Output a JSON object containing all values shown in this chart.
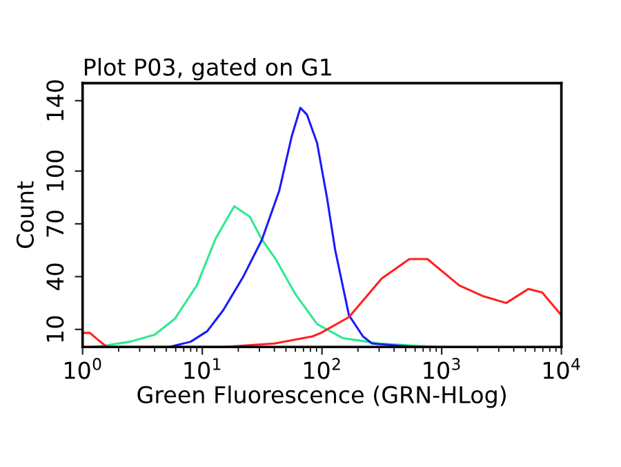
{
  "chart_data": {
    "type": "line",
    "title": "Plot P03, gated on G1",
    "xlabel": "Green Fluorescence (GRN-HLog)",
    "ylabel": "Count",
    "log": "x",
    "xlim": [
      1,
      10000
    ],
    "xticks": [
      {
        "value": 1,
        "label": "10$^{0}$"
      },
      {
        "value": 10,
        "label": "10$^{1}$"
      },
      {
        "value": 100,
        "label": "10$^{2}$"
      },
      {
        "value": 1000,
        "label": "10$^{3}$"
      },
      {
        "value": 10000,
        "label": "10$^{4}$"
      }
    ],
    "ylim": [
      0,
      150
    ],
    "yticks": [
      10,
      40,
      70,
      100,
      140
    ],
    "grid": false,
    "legend": false,
    "series": [
      {
        "color": "#30e890",
        "x": [
          1.2,
          1.6,
          2.5,
          4,
          5.9,
          9,
          13,
          18.5,
          25,
          31.5,
          41,
          60,
          91,
          150,
          300,
          915
        ],
        "values": [
          0,
          1,
          3,
          7,
          16,
          35,
          62,
          80,
          74,
          61,
          50,
          30,
          13,
          5,
          2,
          0
        ]
      },
      {
        "color": "#1a1aff",
        "x": [
          5.3,
          8,
          11,
          15,
          22,
          31.5,
          44,
          56,
          66,
          75,
          91,
          110,
          129,
          168,
          220,
          262,
          585
        ],
        "values": [
          0,
          3,
          9,
          21,
          40,
          61,
          89,
          120,
          136,
          132,
          116,
          85,
          55,
          18,
          6,
          2,
          0
        ]
      },
      {
        "color": "#ff2020",
        "x": [
          1,
          1.15,
          1.35,
          1.6,
          15,
          40,
          83,
          98,
          168,
          316,
          537,
          760,
          1400,
          2200,
          3460,
          5300,
          6900,
          10000
        ],
        "values": [
          8,
          8,
          4,
          0,
          0,
          2,
          6,
          8,
          17,
          39,
          50,
          50,
          35,
          29,
          25,
          33,
          31,
          18
        ]
      }
    ]
  }
}
